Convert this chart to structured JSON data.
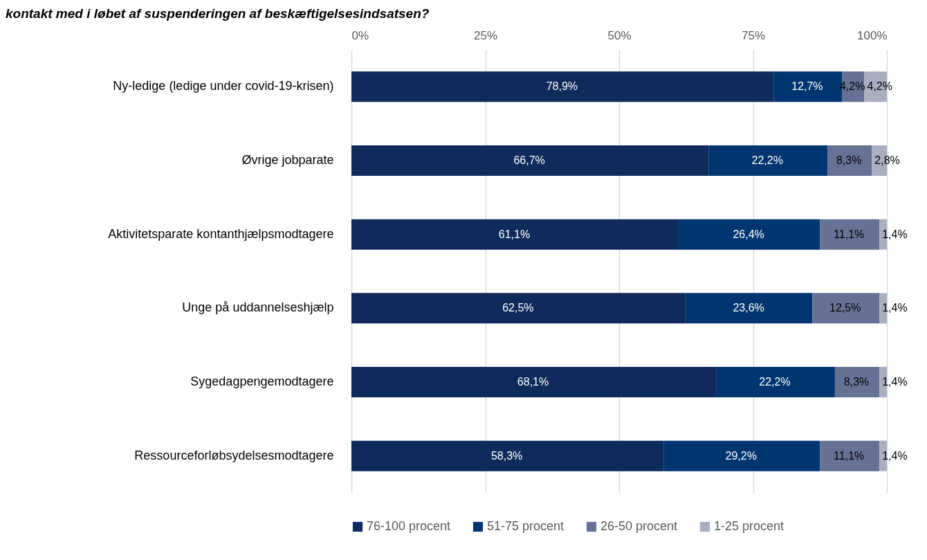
{
  "chart_data": {
    "type": "bar",
    "orientation": "horizontal",
    "stacked": true,
    "title": "kontakt med i løbet af suspenderingen af beskæftigelsesindsatsen?",
    "categories": [
      "Ny-ledige (ledige under covid-19-krisen)",
      "Øvrige jobparate",
      "Aktivitetsparate kontanthjælpsmodtagere",
      "Unge på uddannelseshjælp",
      "Sygedagpengemodtagere",
      "Ressourceforløbsydelsesmodtagere"
    ],
    "series": [
      {
        "name": "76-100 procent",
        "color": "#0e2b5c",
        "values": [
          78.9,
          66.7,
          61.1,
          62.5,
          68.1,
          58.3
        ],
        "value_labels": [
          "78,9%",
          "66,7%",
          "61,1%",
          "62,5%",
          "68,1%",
          "58,3%"
        ]
      },
      {
        "name": "51-75 procent",
        "color": "#003571",
        "values": [
          12.7,
          22.2,
          26.4,
          23.6,
          22.2,
          29.2
        ],
        "value_labels": [
          "12,7%",
          "22,2%",
          "26,4%",
          "23,6%",
          "22,2%",
          "29,2%"
        ]
      },
      {
        "name": "26-50 procent",
        "color": "#657294",
        "values": [
          4.2,
          8.3,
          11.1,
          12.5,
          8.3,
          11.1
        ],
        "value_labels": [
          "4,2%",
          "8,3%",
          "11,1%",
          "12,5%",
          "8,3%",
          "11,1%"
        ]
      },
      {
        "name": "1-25 procent",
        "color": "#a9aec1",
        "values": [
          4.2,
          2.8,
          1.4,
          1.4,
          1.4,
          1.4
        ],
        "value_labels": [
          "4,2%",
          "2,8%",
          "1,4%",
          "1,4%",
          "1,4%",
          "1,4%"
        ]
      }
    ],
    "xlim": [
      0,
      100
    ],
    "xticks": [
      {
        "value": 0,
        "label": "0%"
      },
      {
        "value": 25,
        "label": "25%"
      },
      {
        "value": 50,
        "label": "50%"
      },
      {
        "value": 75,
        "label": "75%"
      },
      {
        "value": 100,
        "label": "100%"
      }
    ],
    "grid": "x",
    "legend": "bottom"
  }
}
